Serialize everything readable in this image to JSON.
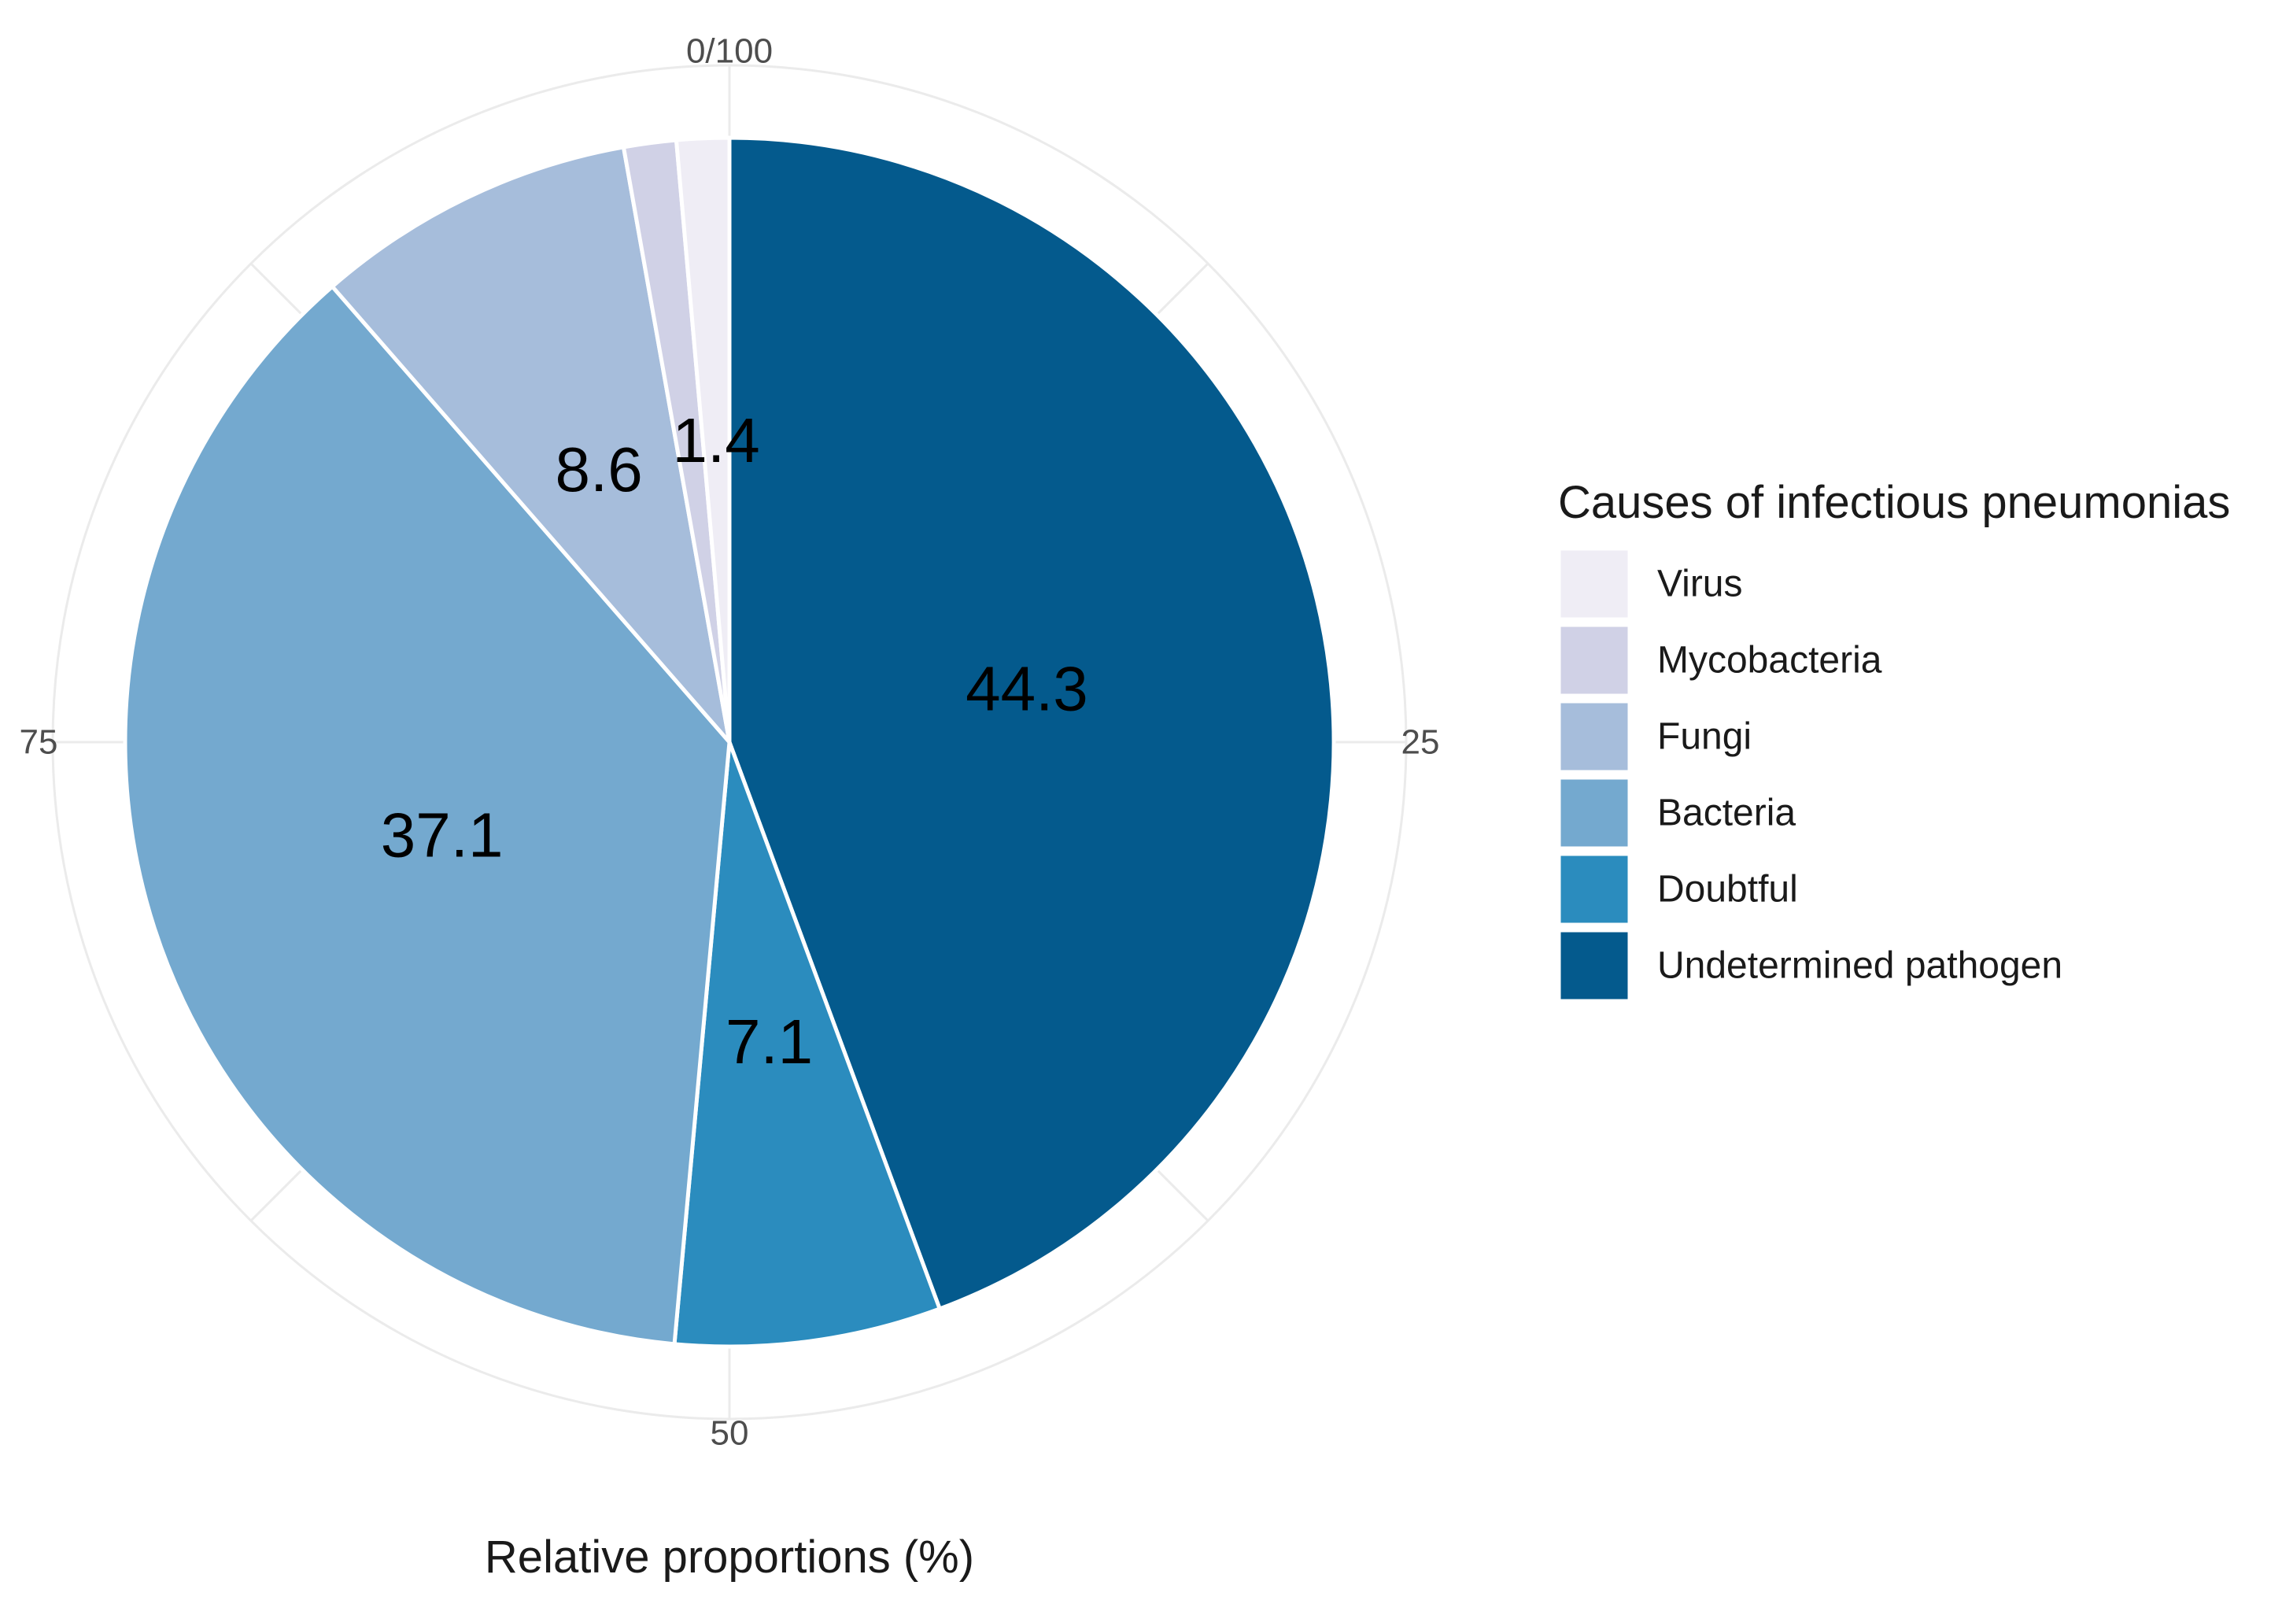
{
  "chart_data": {
    "type": "pie",
    "xlabel": "Relative proportions (%)",
    "angle_ticks": [
      "0/100",
      "25",
      "50",
      "75"
    ],
    "legend": {
      "title": "Causes of infectious pneumonias",
      "position": "right"
    },
    "categories": [
      "Virus",
      "Mycobacteria",
      "Fungi",
      "Bacteria",
      "Doubtful",
      "Undetermined pathogen"
    ],
    "series": [
      {
        "values": [
          1.4,
          1.4,
          8.6,
          37.1,
          7.1,
          44.3
        ],
        "labels": [
          "1.4",
          "",
          "8.6",
          "37.1",
          "7.1",
          "44.3"
        ]
      }
    ],
    "colors": [
      "#efedf5",
      "#d0d1e6",
      "#a6bddb",
      "#74a9cf",
      "#2b8cbe",
      "#045a8d"
    ],
    "grid": true
  }
}
